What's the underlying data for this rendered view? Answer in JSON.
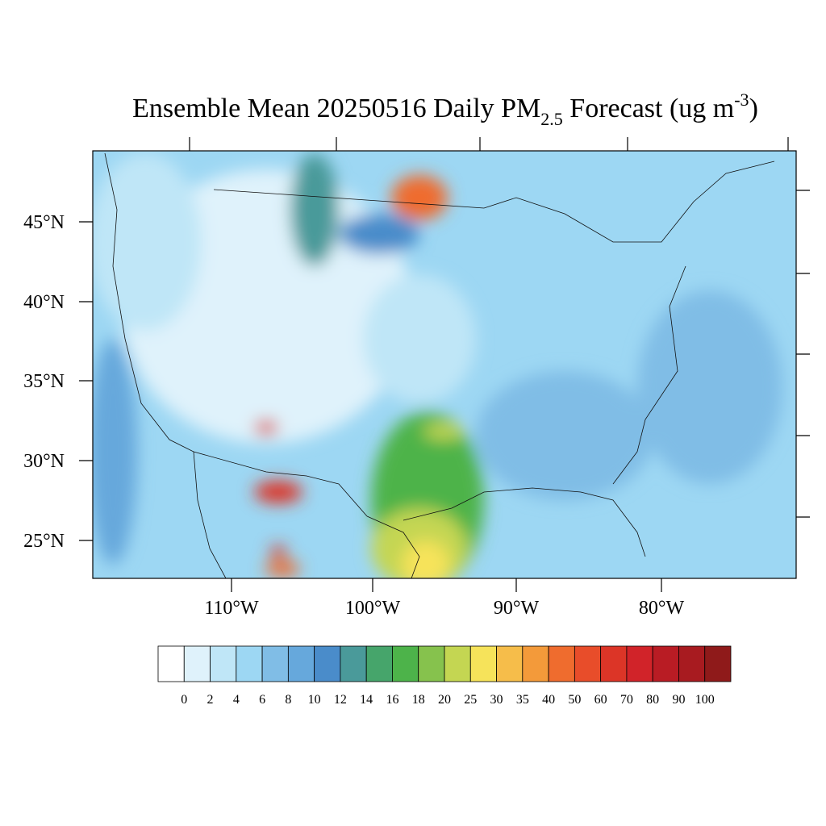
{
  "title": {
    "text": "Ensemble Mean 20250516 Daily PM",
    "subscript": "2.5",
    "text2": " Forecast (ug m",
    "superscript": "-3",
    "text3": ")"
  },
  "map": {
    "lat_labels": [
      "45°N",
      "40°N",
      "35°N",
      "30°N",
      "25°N"
    ],
    "lon_labels": [
      "110°W",
      "100°W",
      "90°W",
      "80°W"
    ]
  },
  "colorbar": {
    "colors": [
      "#ffffff",
      "#dff2fb",
      "#bfe6f7",
      "#9dd7f3",
      "#80bde6",
      "#66a8dc",
      "#4a8cca",
      "#4a9a9a",
      "#46a56b",
      "#4db34a",
      "#86c24d",
      "#c4d652",
      "#f6e35a",
      "#f6bd4a",
      "#f39a3a",
      "#ef6c2e",
      "#e84d2a",
      "#dc3527",
      "#d12329",
      "#b91c24",
      "#a81b20",
      "#8f1a1a"
    ],
    "labels": [
      0,
      2,
      4,
      6,
      8,
      10,
      12,
      14,
      16,
      18,
      20,
      25,
      30,
      35,
      40,
      50,
      60,
      70,
      80,
      90,
      100
    ]
  }
}
